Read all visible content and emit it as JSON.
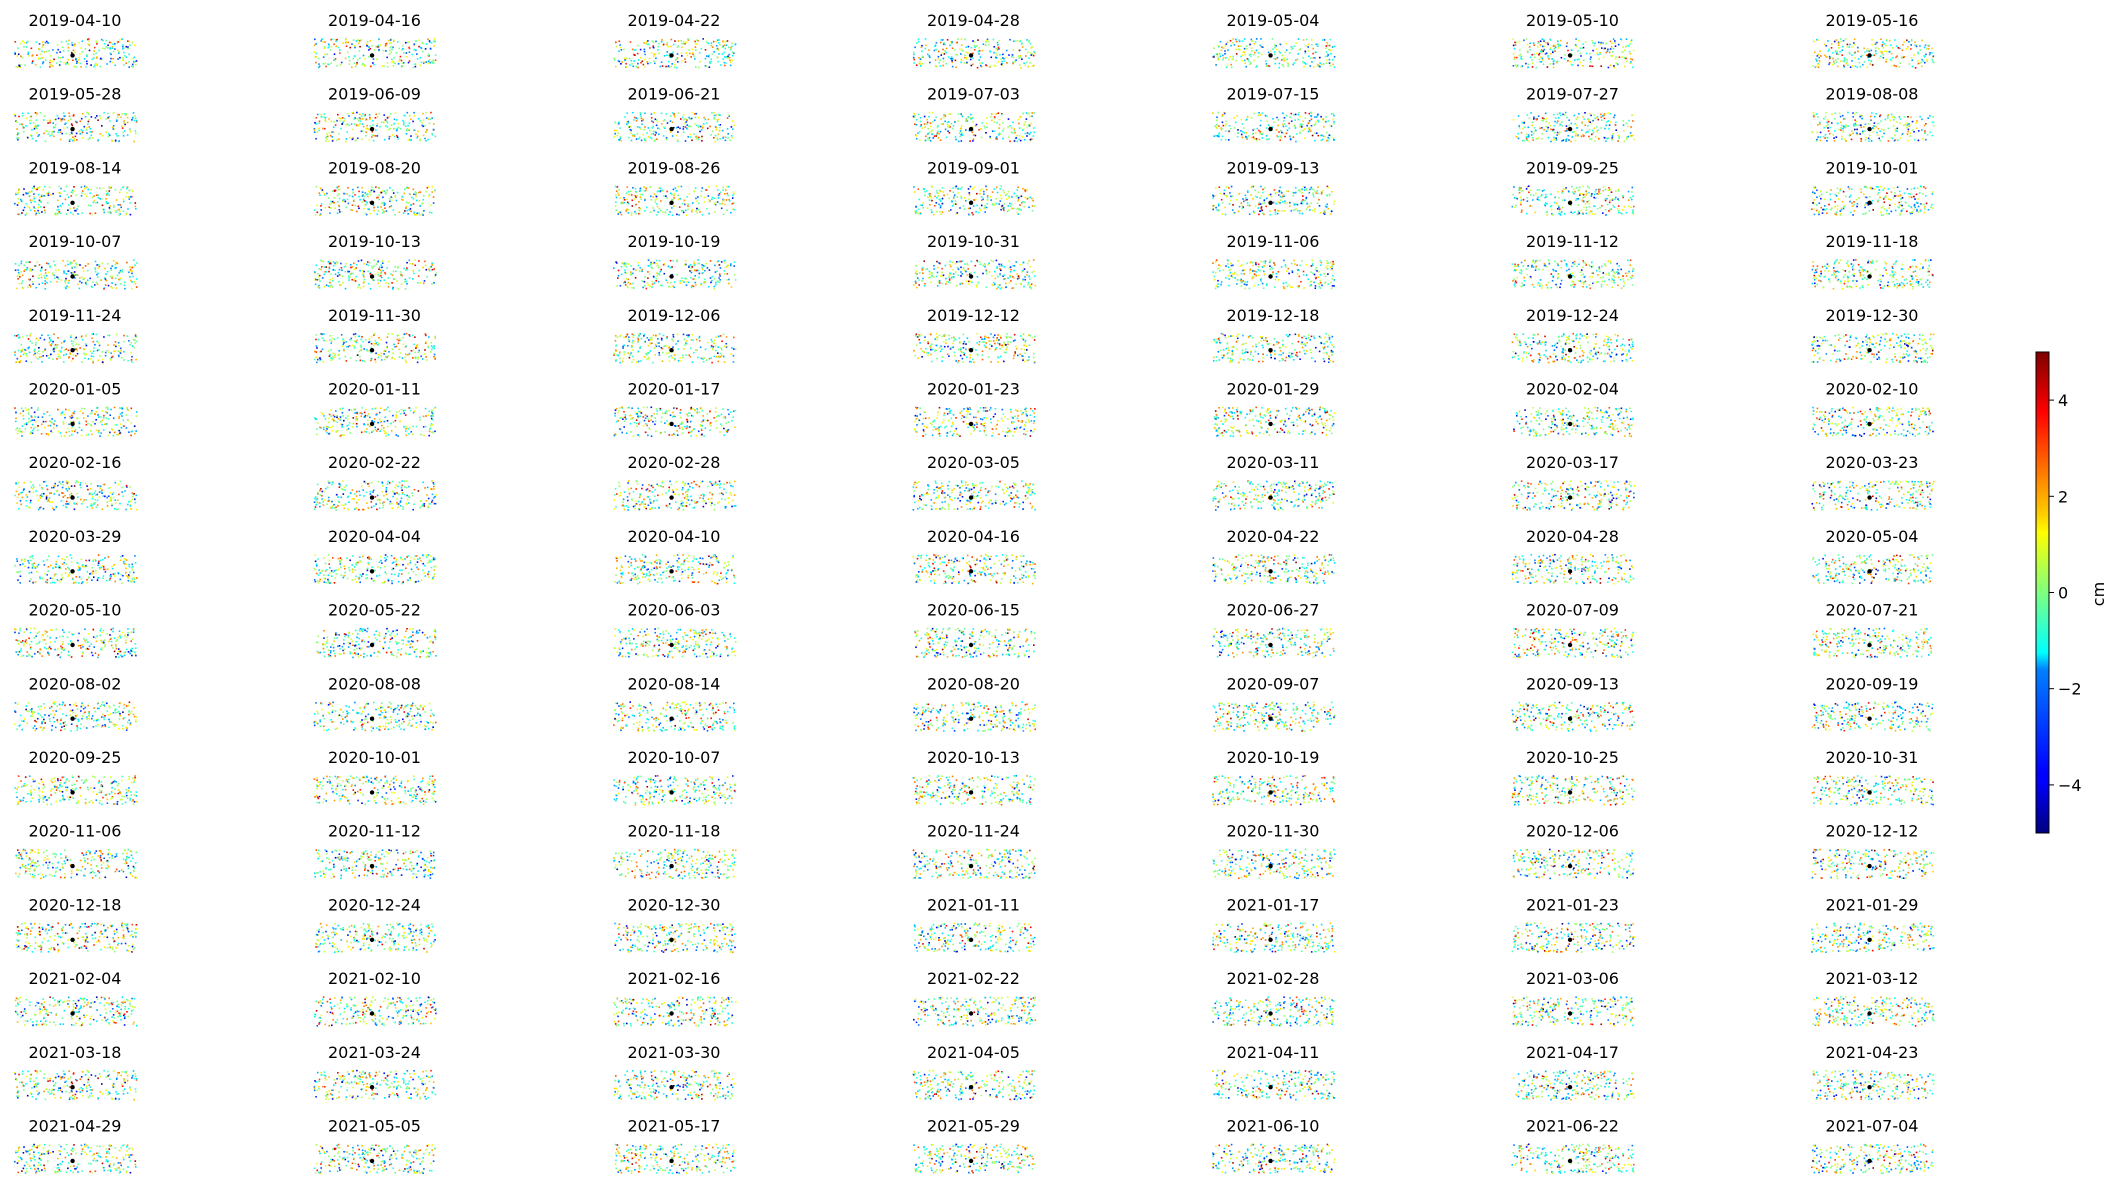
{
  "chart_data": {
    "type": "scatter",
    "layout": {
      "rows": 16,
      "cols": 7
    },
    "panel_titles": [
      "2019-04-10",
      "2019-04-16",
      "2019-04-22",
      "2019-04-28",
      "2019-05-04",
      "2019-05-10",
      "2019-05-16",
      "2019-05-28",
      "2019-06-09",
      "2019-06-21",
      "2019-07-03",
      "2019-07-15",
      "2019-07-27",
      "2019-08-08",
      "2019-08-14",
      "2019-08-20",
      "2019-08-26",
      "2019-09-01",
      "2019-09-13",
      "2019-09-25",
      "2019-10-01",
      "2019-10-07",
      "2019-10-13",
      "2019-10-19",
      "2019-10-31",
      "2019-11-06",
      "2019-11-12",
      "2019-11-18",
      "2019-11-24",
      "2019-11-30",
      "2019-12-06",
      "2019-12-12",
      "2019-12-18",
      "2019-12-24",
      "2019-12-30",
      "2020-01-05",
      "2020-01-11",
      "2020-01-17",
      "2020-01-23",
      "2020-01-29",
      "2020-02-04",
      "2020-02-10",
      "2020-02-16",
      "2020-02-22",
      "2020-02-28",
      "2020-03-05",
      "2020-03-11",
      "2020-03-17",
      "2020-03-23",
      "2020-03-29",
      "2020-04-04",
      "2020-04-10",
      "2020-04-16",
      "2020-04-22",
      "2020-04-28",
      "2020-05-04",
      "2020-05-10",
      "2020-05-22",
      "2020-06-03",
      "2020-06-15",
      "2020-06-27",
      "2020-07-09",
      "2020-07-21",
      "2020-08-02",
      "2020-08-08",
      "2020-08-14",
      "2020-08-20",
      "2020-09-07",
      "2020-09-13",
      "2020-09-19",
      "2020-09-25",
      "2020-10-01",
      "2020-10-07",
      "2020-10-13",
      "2020-10-19",
      "2020-10-25",
      "2020-10-31",
      "2020-11-06",
      "2020-11-12",
      "2020-11-18",
      "2020-11-24",
      "2020-11-30",
      "2020-12-06",
      "2020-12-12",
      "2020-12-18",
      "2020-12-24",
      "2020-12-30",
      "2021-01-11",
      "2021-01-17",
      "2021-01-23",
      "2021-01-29",
      "2021-02-04",
      "2021-02-10",
      "2021-02-16",
      "2021-02-22",
      "2021-02-28",
      "2021-03-06",
      "2021-03-12",
      "2021-03-18",
      "2021-03-24",
      "2021-03-30",
      "2021-04-05",
      "2021-04-11",
      "2021-04-17",
      "2021-04-23",
      "2021-04-29",
      "2021-05-05",
      "2021-05-17",
      "2021-05-29",
      "2021-06-10",
      "2021-06-22",
      "2021-07-04"
    ],
    "colorbar": {
      "colormap": "jet",
      "label": "cm",
      "range": [
        -5,
        5
      ],
      "ticks": [
        4,
        2,
        0,
        -2,
        -4
      ],
      "tick_labels": [
        "4",
        "2",
        "0",
        "−2",
        "−4"
      ]
    },
    "colors": {
      "reference_point": "#000000"
    }
  }
}
